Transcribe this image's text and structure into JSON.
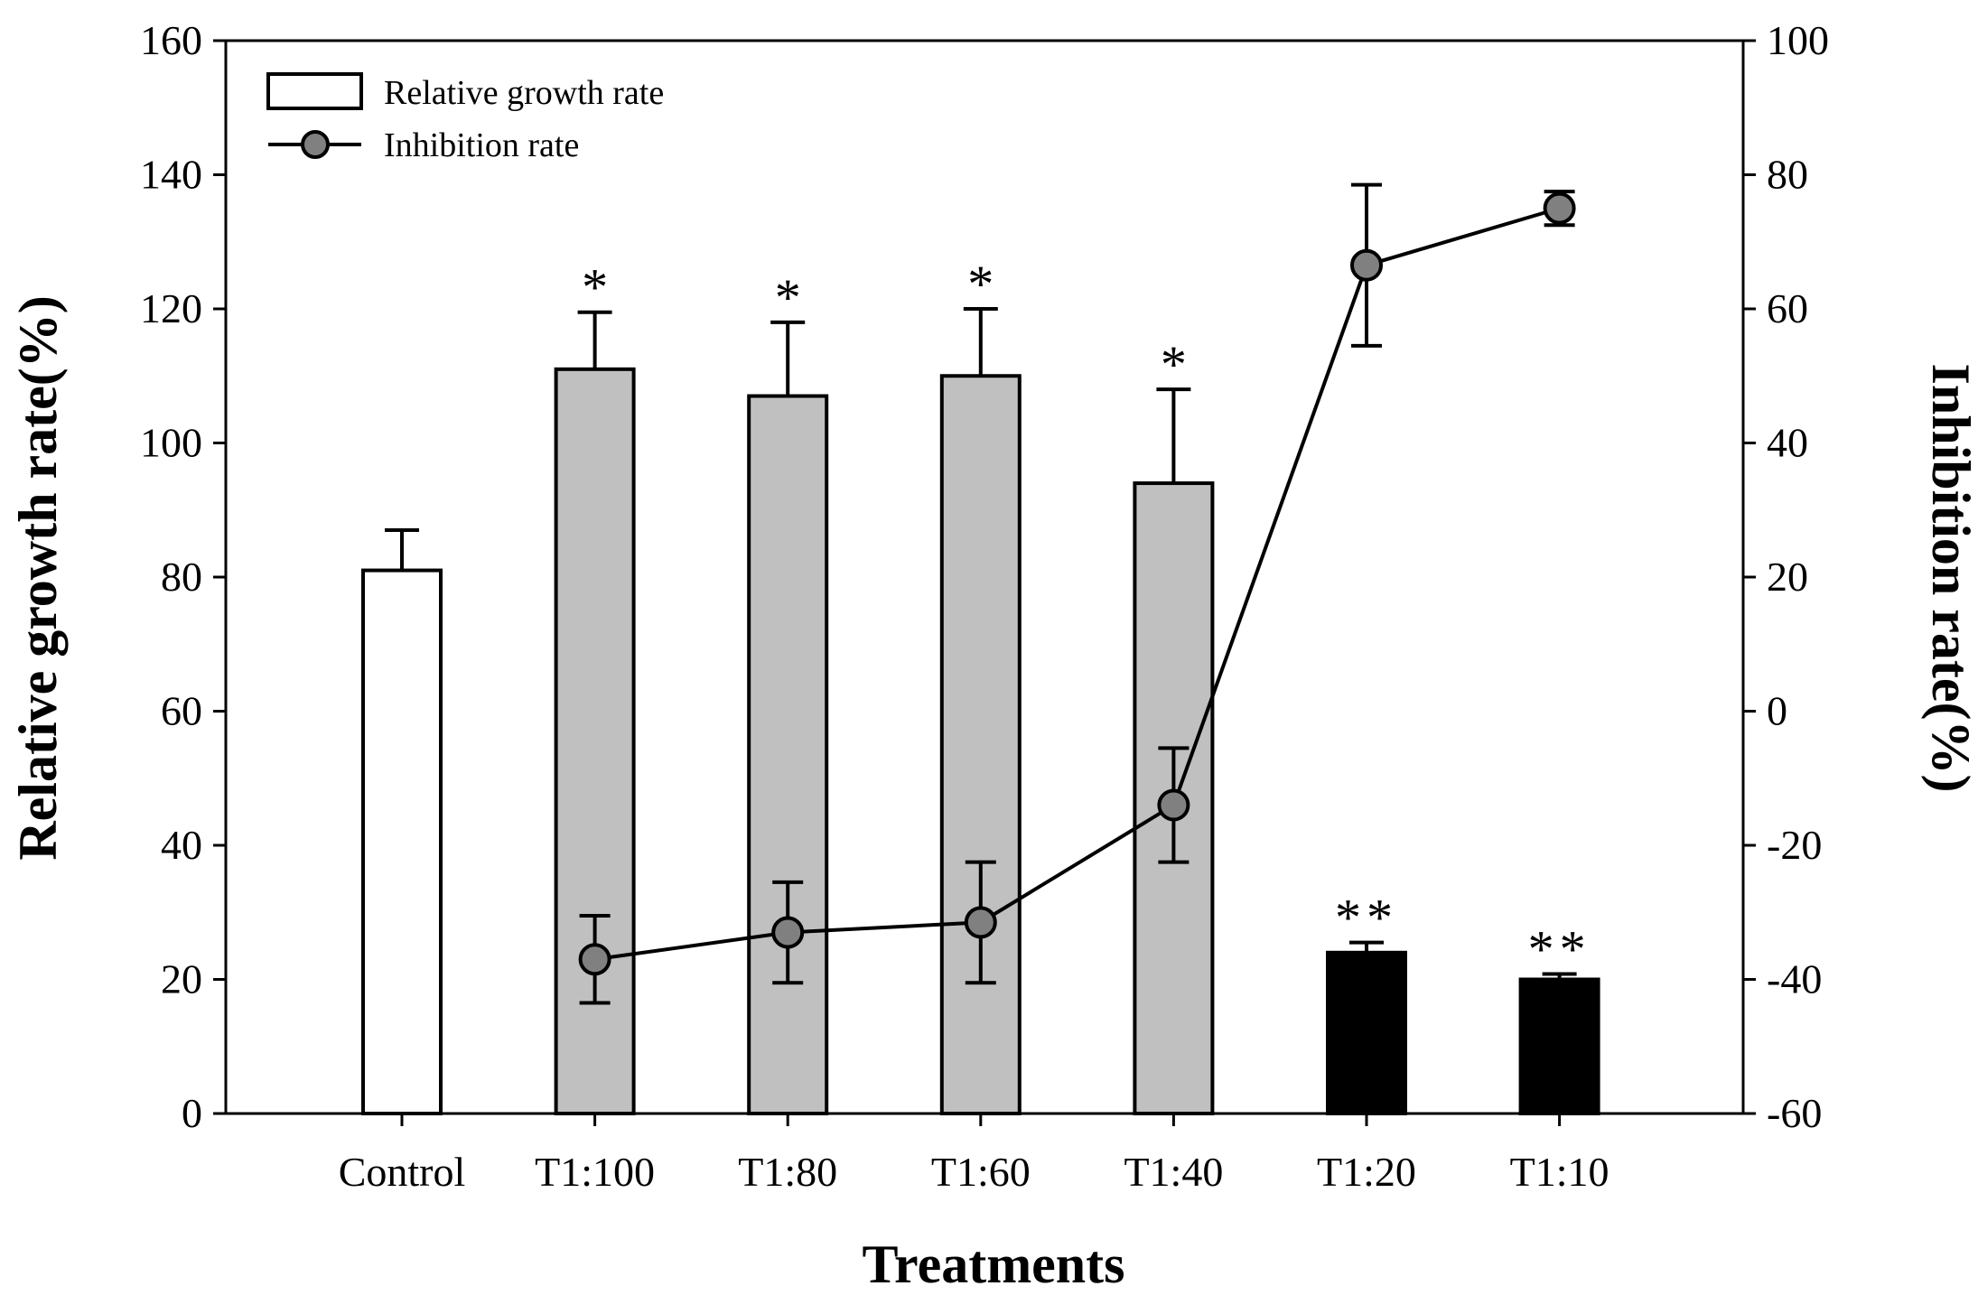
{
  "chart_data": {
    "type": "bar+line",
    "categories": [
      "Control",
      "T1:100",
      "T1:80",
      "T1:60",
      "T1:40",
      "T1:20",
      "T1:10"
    ],
    "xlabel": "Treatments",
    "y_left": {
      "label": "Relative growth rate(%)",
      "range": [
        0,
        160
      ],
      "ticks": [
        "0",
        "20",
        "40",
        "60",
        "80",
        "100",
        "120",
        "140",
        "160"
      ]
    },
    "y_right": {
      "label": "Inhibition rate(%)",
      "range": [
        -60,
        100
      ],
      "ticks": [
        "-60",
        "-40",
        "-20",
        "0",
        "20",
        "40",
        "60",
        "80",
        "100"
      ]
    },
    "bars": {
      "name": "Relative growth rate",
      "axis": "left",
      "values": [
        81,
        111,
        107,
        110,
        94,
        24,
        20
      ],
      "errors": [
        6,
        8.5,
        11,
        10,
        14,
        1.5,
        0.8
      ],
      "fill_colors": [
        "#ffffff",
        "#c0c0c0",
        "#c0c0c0",
        "#c0c0c0",
        "#c0c0c0",
        "#000000",
        "#000000"
      ],
      "significance": [
        "",
        "*",
        "*",
        "*",
        "*",
        "**",
        "**"
      ]
    },
    "line": {
      "name": "Inhibition rate",
      "axis": "right",
      "categories": [
        "T1:100",
        "T1:80",
        "T1:60",
        "T1:40",
        "T1:20",
        "T1:10"
      ],
      "values": [
        -37,
        -33,
        -31.5,
        -14,
        66.5,
        75
      ],
      "errors": [
        6.5,
        7.5,
        9,
        8.5,
        12,
        2.5
      ],
      "marker_color": "#808080",
      "line_color": "#000000"
    },
    "legend": {
      "position": "top-left",
      "entries": [
        "Relative growth rate",
        "Inhibition rate"
      ]
    }
  }
}
